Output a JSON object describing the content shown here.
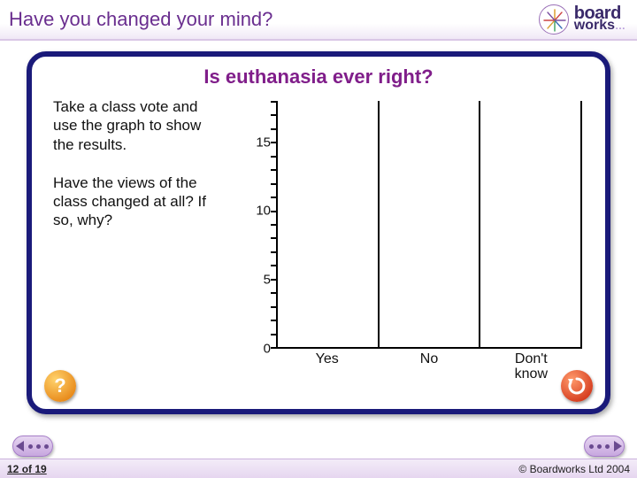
{
  "header": {
    "title": "Have you changed your mind?",
    "title_color": "#6a2e8f",
    "title_fontsize": 22,
    "logo_brand_top": "board",
    "logo_brand_bottom": "works",
    "logo_dots": "…",
    "logo_color": "#3a2a6a"
  },
  "panel": {
    "border_color": "#1a1a7a",
    "border_radius": 22,
    "title": "Is euthanasia ever right?",
    "title_color": "#801e8a",
    "title_fontsize": 22,
    "instructions_p1": "Take a class vote and use the graph to show the results.",
    "instructions_p2": "Have the views of the class changed at all? If so, why?",
    "instructions_fontsize": 17,
    "instructions_color": "#111111"
  },
  "chart": {
    "type": "bar",
    "categories": [
      "Yes",
      "No",
      "Don't\nknow"
    ],
    "values": [
      0,
      0,
      0
    ],
    "y_min": 0,
    "y_max": 18,
    "y_labeled_ticks": [
      0,
      5,
      10,
      15
    ],
    "y_minor_step": 1,
    "axis_color": "#000000",
    "axis_width": 2,
    "label_fontsize": 15,
    "cat_fontsize": 16,
    "background_color": "#ffffff",
    "bar_slot_divider_color": "#000000"
  },
  "buttons": {
    "help_symbol": "?",
    "help_bg": "#e88b1c",
    "reset_symbol_rotation": 300,
    "reset_bg": "#d63e20"
  },
  "nav": {
    "prev_dots": 3,
    "next_dots": 3,
    "pill_bg": "#c7a6df",
    "pill_accent": "#6a4a90"
  },
  "footer": {
    "page_current": 12,
    "page_total": 19,
    "page_sep": "of",
    "copyright": "© Boardworks Ltd 2004",
    "bg": "#e6d6f0",
    "font_color": "#222222",
    "fontsize": 12
  }
}
